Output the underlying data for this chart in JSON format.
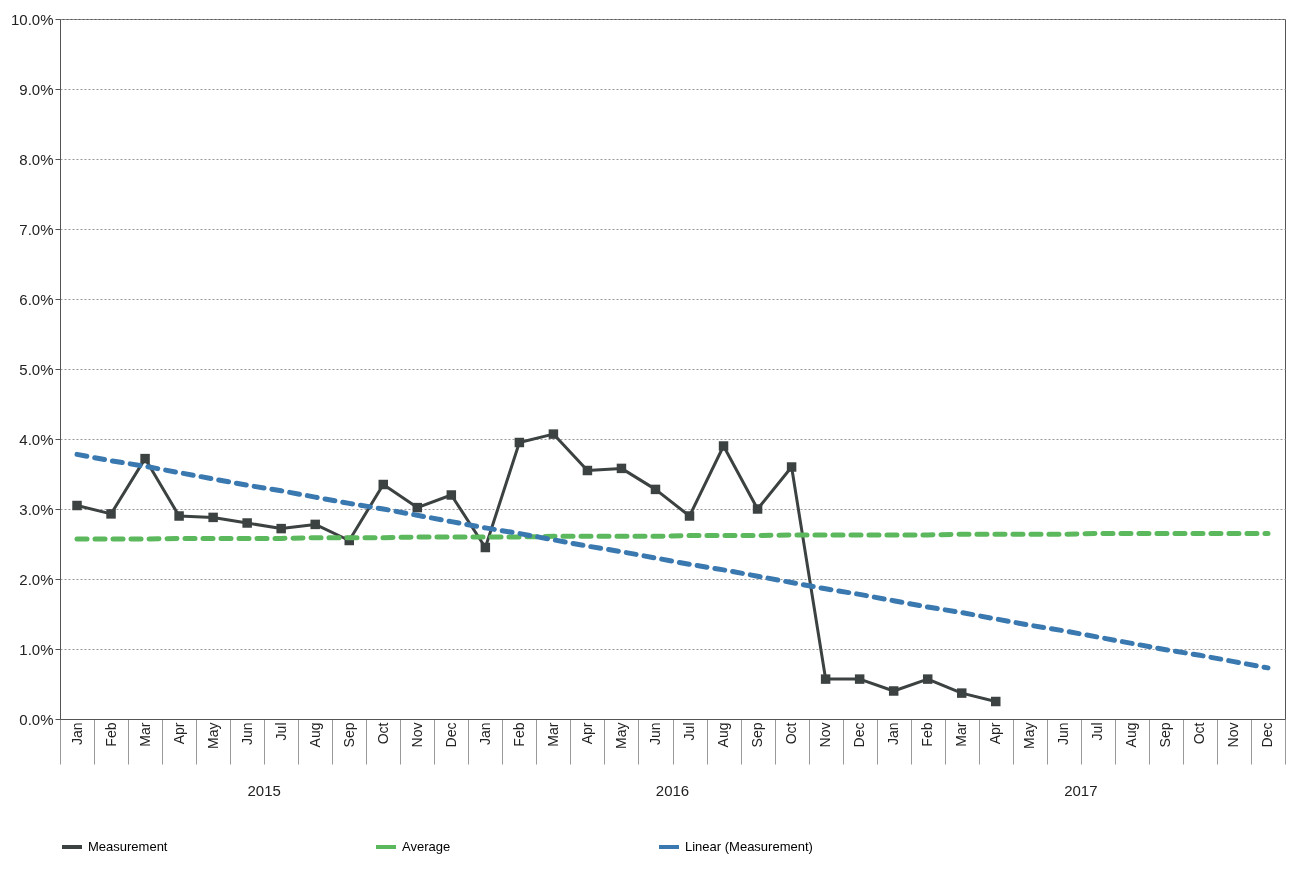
{
  "chart_data": {
    "type": "line",
    "categories": [
      "Jan",
      "Feb",
      "Mar",
      "Apr",
      "May",
      "Jun",
      "Jul",
      "Aug",
      "Sep",
      "Oct",
      "Nov",
      "Dec",
      "Jan",
      "Feb",
      "Mar",
      "Apr",
      "May",
      "Jun",
      "Jul",
      "Aug",
      "Sep",
      "Oct",
      "Nov",
      "Dec",
      "Jan",
      "Feb",
      "Mar",
      "Apr",
      "May",
      "Jun",
      "Jul",
      "Aug",
      "Sep",
      "Oct",
      "Nov",
      "Dec"
    ],
    "series": [
      {
        "name": "Measurement",
        "color": "#3c4241",
        "marker": "square",
        "line_style": "solid",
        "values": [
          3.05,
          2.93,
          3.72,
          2.9,
          2.88,
          2.8,
          2.72,
          2.78,
          2.55,
          3.35,
          3.02,
          3.2,
          2.45,
          3.95,
          4.07,
          3.55,
          3.58,
          3.28,
          2.9,
          3.9,
          3.0,
          3.6,
          0.57,
          0.57,
          0.4,
          0.57,
          0.37,
          0.25,
          null,
          null,
          null,
          null,
          null,
          null,
          null,
          null
        ]
      },
      {
        "name": "Average",
        "color": "#5cb85c",
        "marker": "none",
        "line_style": "dashed",
        "values": [
          2.57,
          2.57,
          2.57,
          2.58,
          2.58,
          2.58,
          2.58,
          2.59,
          2.59,
          2.59,
          2.6,
          2.6,
          2.6,
          2.6,
          2.61,
          2.61,
          2.61,
          2.61,
          2.62,
          2.62,
          2.62,
          2.63,
          2.63,
          2.63,
          2.63,
          2.63,
          2.64,
          2.64,
          2.64,
          2.64,
          2.65,
          2.65,
          2.65,
          2.65,
          2.65,
          2.65
        ]
      },
      {
        "name": "Linear (Measurement)",
        "color": "#3a78b0",
        "marker": "none",
        "line_style": "dashed",
        "values": [
          3.78,
          3.69,
          3.61,
          3.52,
          3.43,
          3.34,
          3.26,
          3.17,
          3.08,
          3.0,
          2.91,
          2.82,
          2.73,
          2.65,
          2.56,
          2.47,
          2.39,
          2.3,
          2.21,
          2.13,
          2.04,
          1.95,
          1.86,
          1.78,
          1.69,
          1.6,
          1.52,
          1.43,
          1.34,
          1.26,
          1.17,
          1.08,
          0.99,
          0.91,
          0.82,
          0.73
        ]
      }
    ],
    "ylim": [
      0,
      10
    ],
    "yticks": [
      {
        "value": 0,
        "label": "0.0%"
      },
      {
        "value": 1,
        "label": "1.0%"
      },
      {
        "value": 2,
        "label": "2.0%"
      },
      {
        "value": 3,
        "label": "3.0%"
      },
      {
        "value": 4,
        "label": "4.0%"
      },
      {
        "value": 5,
        "label": "5.0%"
      },
      {
        "value": 6,
        "label": "6.0%"
      },
      {
        "value": 7,
        "label": "7.0%"
      },
      {
        "value": 8,
        "label": "8.0%"
      },
      {
        "value": 9,
        "label": "9.0%"
      },
      {
        "value": 10,
        "label": "10.0%"
      }
    ],
    "grid": "y",
    "legend": "bottom",
    "annotations": [
      "2015",
      "2016",
      "2017"
    ]
  }
}
